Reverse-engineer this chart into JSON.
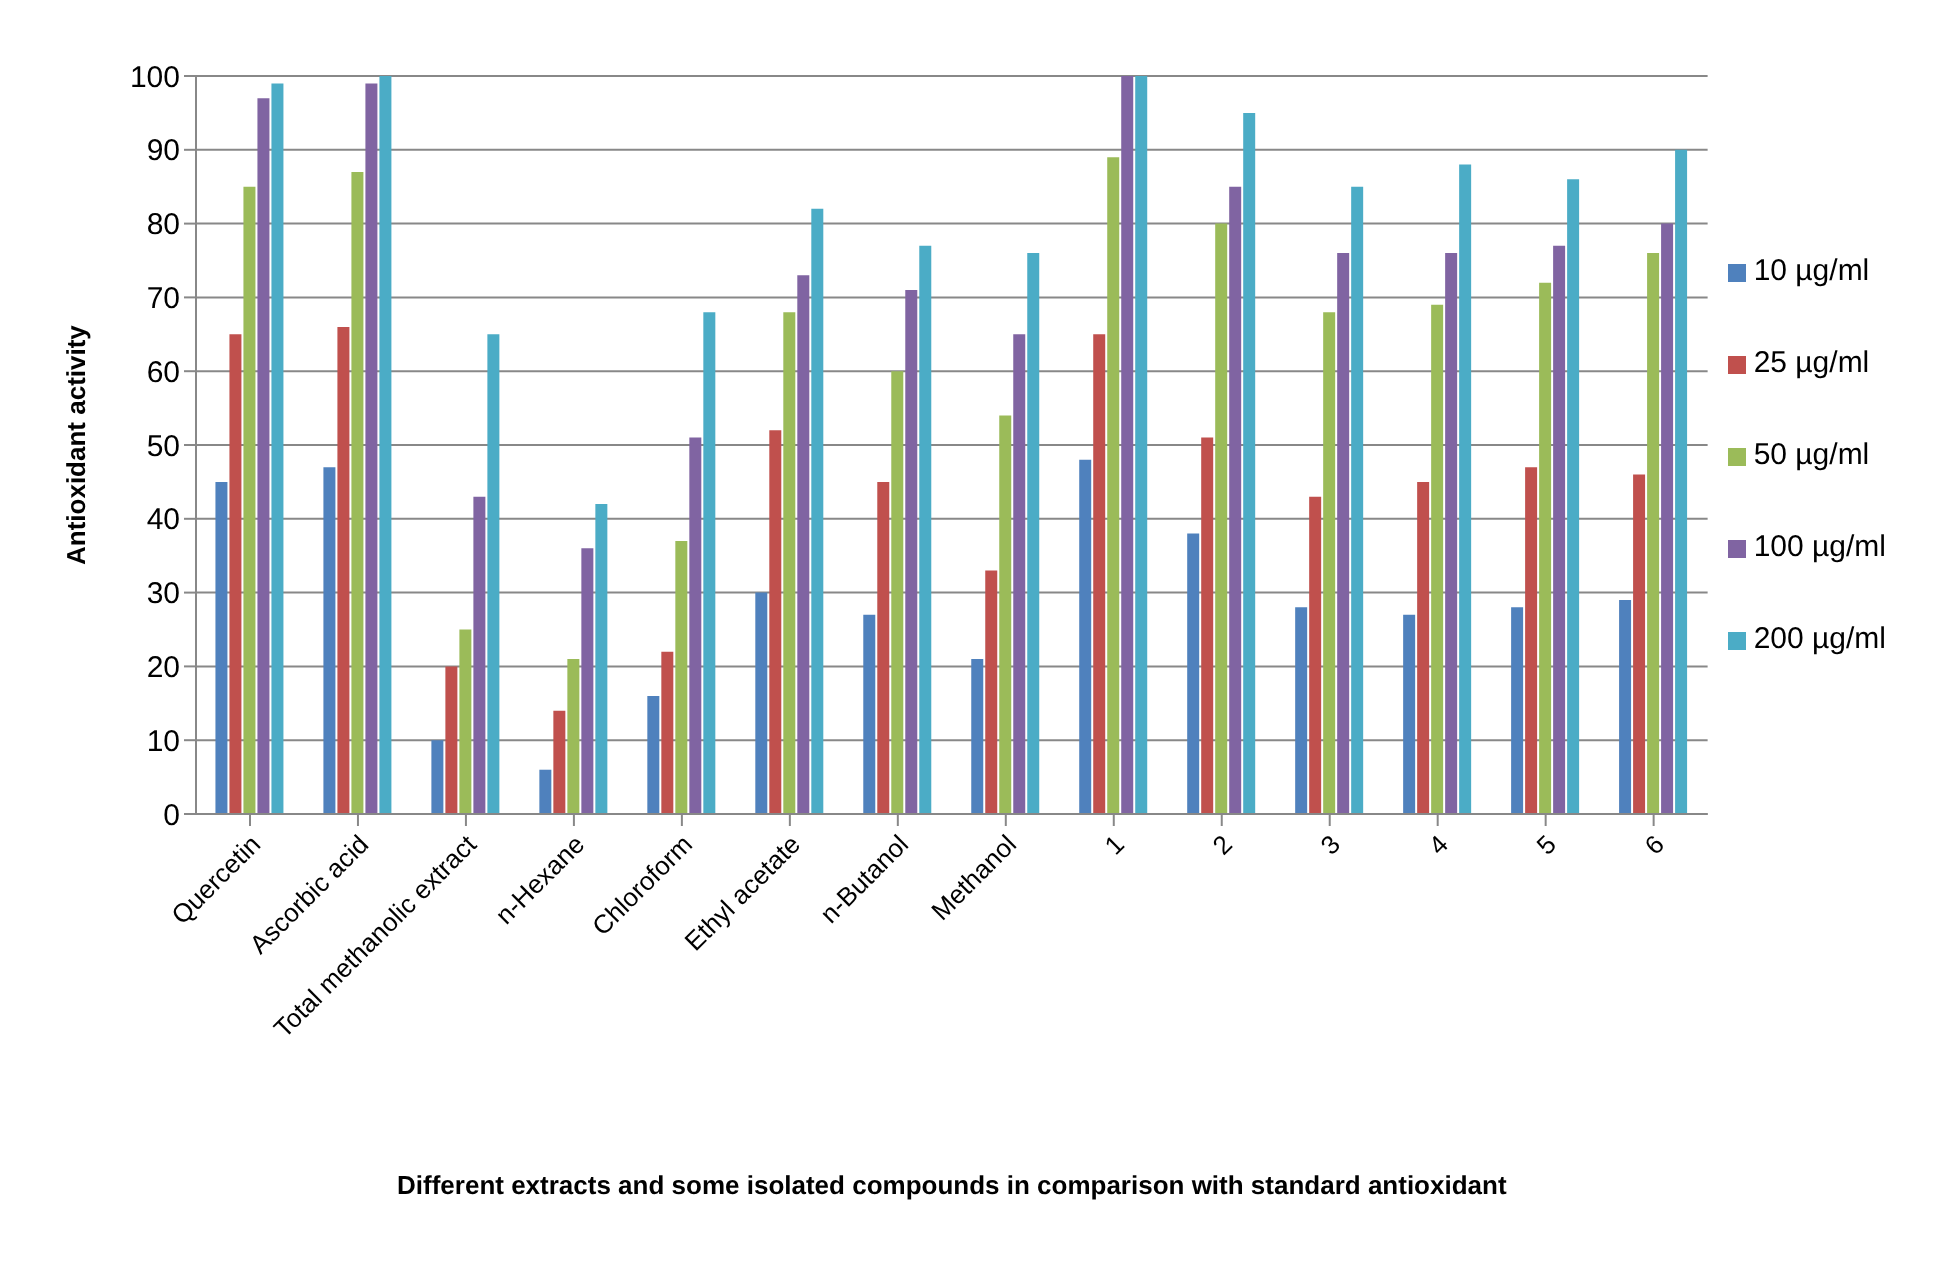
{
  "chart_data": {
    "type": "bar",
    "xlabel": "Different extracts and some isolated compounds in comparison with standard antioxidant",
    "ylabel": "Antioxidant activity",
    "categories": [
      "Quercetin",
      "Ascorbic acid",
      "Total methanolic extract",
      "n-Hexane",
      "Chloroform",
      "Ethyl acetate",
      "n-Butanol",
      "Methanol",
      "1",
      "2",
      "3",
      "4",
      "5",
      "6"
    ],
    "series": [
      {
        "name": "10 µg/ml",
        "color": "#4f81bd",
        "values": [
          45,
          47,
          10,
          6,
          16,
          30,
          27,
          21,
          48,
          38,
          28,
          27,
          28,
          29
        ]
      },
      {
        "name": "25 µg/ml",
        "color": "#c0504d",
        "values": [
          65,
          66,
          20,
          14,
          22,
          52,
          45,
          33,
          65,
          51,
          43,
          45,
          47,
          46
        ]
      },
      {
        "name": "50 µg/ml",
        "color": "#9bbb59",
        "values": [
          85,
          87,
          25,
          21,
          37,
          68,
          60,
          54,
          89,
          80,
          68,
          69,
          72,
          76
        ]
      },
      {
        "name": "100 µg/ml",
        "color": "#8064a2",
        "values": [
          97,
          99,
          43,
          36,
          51,
          73,
          71,
          65,
          100,
          85,
          76,
          76,
          77,
          80
        ]
      },
      {
        "name": "200 µg/ml",
        "color": "#4bacc6",
        "values": [
          99,
          100,
          65,
          42,
          68,
          82,
          77,
          76,
          100,
          95,
          85,
          88,
          86,
          90
        ]
      }
    ],
    "ylim": [
      0,
      100
    ],
    "yticks": [
      0,
      10,
      20,
      30,
      40,
      50,
      60,
      70,
      80,
      90,
      100
    ],
    "grid": "y",
    "legend": "right"
  }
}
